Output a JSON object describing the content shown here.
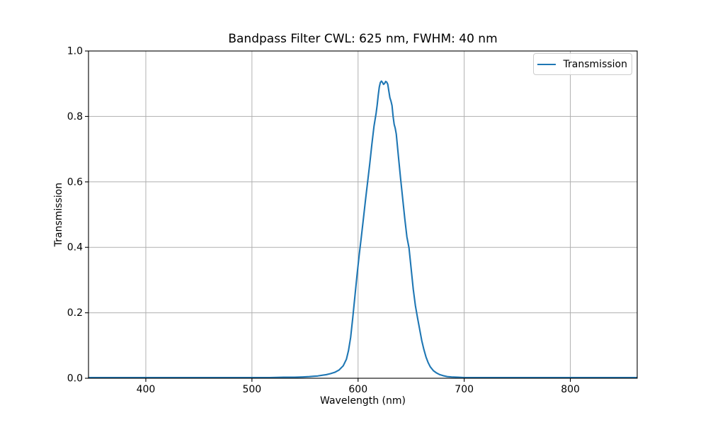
{
  "chart_data": {
    "type": "line",
    "title": "Bandpass Filter CWL: 625 nm, FWHM: 40 nm",
    "xlabel": "Wavelength (nm)",
    "ylabel": "Transmission",
    "xlim": [
      346,
      863
    ],
    "ylim": [
      0.0,
      1.0
    ],
    "xticks": [
      400,
      500,
      600,
      700,
      800
    ],
    "xtick_labels": [
      "400",
      "500",
      "600",
      "700",
      "800"
    ],
    "yticks": [
      0.0,
      0.2,
      0.4,
      0.6,
      0.8,
      1.0
    ],
    "ytick_labels": [
      "0.0",
      "0.2",
      "0.4",
      "0.6",
      "0.8",
      "1.0"
    ],
    "grid": true,
    "annotations": {
      "cwl_nm": 625,
      "fwhm_nm": 40,
      "peak_transmission": 0.908
    },
    "legend": {
      "position": "upper right",
      "entries": [
        {
          "label": "Transmission",
          "color": "#1f77b4"
        }
      ]
    },
    "colors": {
      "line": "#1f77b4",
      "grid": "#b0b0b0",
      "spine": "#000000",
      "text": "#000000",
      "legend_border": "#cccccc",
      "background": "#ffffff"
    },
    "series": [
      {
        "name": "Transmission",
        "color": "#1f77b4",
        "x": [
          346,
          360,
          380,
          400,
          420,
          440,
          460,
          480,
          500,
          515,
          530,
          540,
          548,
          554,
          558,
          562,
          566,
          570,
          574,
          578,
          582,
          586,
          589,
          591,
          593,
          595,
          597,
          599,
          601,
          603,
          605,
          607,
          609,
          611,
          613,
          615,
          617,
          618,
          619,
          620,
          621,
          622,
          623,
          624,
          625,
          626,
          627,
          628,
          629,
          630,
          631,
          632,
          633,
          634,
          635,
          636,
          637,
          638,
          640,
          642,
          644,
          646,
          648,
          650,
          652,
          654,
          656,
          658,
          660,
          662,
          664,
          666,
          668,
          671,
          674,
          677,
          680,
          684,
          688,
          694,
          700,
          710,
          725,
          740,
          760,
          780,
          800,
          820,
          840,
          863
        ],
        "y": [
          0.002,
          0.002,
          0.002,
          0.002,
          0.002,
          0.002,
          0.002,
          0.002,
          0.002,
          0.002,
          0.003,
          0.003,
          0.004,
          0.005,
          0.006,
          0.007,
          0.009,
          0.011,
          0.014,
          0.018,
          0.025,
          0.038,
          0.058,
          0.085,
          0.125,
          0.185,
          0.25,
          0.315,
          0.375,
          0.43,
          0.487,
          0.545,
          0.6,
          0.655,
          0.715,
          0.77,
          0.81,
          0.835,
          0.865,
          0.89,
          0.904,
          0.908,
          0.904,
          0.898,
          0.901,
          0.907,
          0.905,
          0.898,
          0.877,
          0.857,
          0.847,
          0.833,
          0.8,
          0.776,
          0.764,
          0.746,
          0.712,
          0.678,
          0.612,
          0.55,
          0.488,
          0.432,
          0.398,
          0.335,
          0.272,
          0.222,
          0.185,
          0.15,
          0.115,
          0.088,
          0.065,
          0.048,
          0.035,
          0.023,
          0.016,
          0.011,
          0.008,
          0.005,
          0.004,
          0.003,
          0.002,
          0.002,
          0.002,
          0.002,
          0.002,
          0.002,
          0.002,
          0.002,
          0.002,
          0.002
        ]
      }
    ]
  }
}
